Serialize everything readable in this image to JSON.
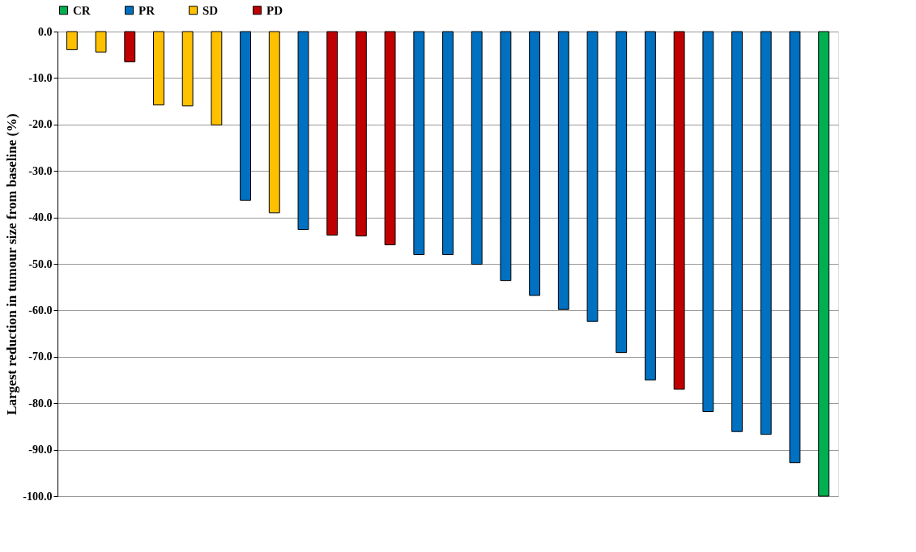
{
  "chart_data": {
    "type": "bar",
    "ylabel": "Largest reduction in tumour size from baseline (%)",
    "categories": [
      null,
      null,
      null,
      null,
      null,
      null,
      null,
      null,
      null,
      null,
      null,
      null,
      null,
      null,
      null,
      null,
      null,
      null,
      null,
      null,
      null,
      null,
      null,
      null,
      null,
      null,
      null
    ],
    "series": [
      {
        "name": "CR",
        "color": "#00b050",
        "values": [
          null,
          null,
          null,
          null,
          null,
          null,
          null,
          null,
          null,
          null,
          null,
          null,
          null,
          null,
          null,
          null,
          null,
          null,
          null,
          null,
          null,
          null,
          null,
          null,
          null,
          null,
          -100.0
        ]
      },
      {
        "name": "PR",
        "color": "#0070c0",
        "values": [
          null,
          null,
          null,
          null,
          null,
          null,
          -36.3,
          null,
          -42.6,
          null,
          null,
          null,
          -48.0,
          -48.0,
          -50.1,
          -53.6,
          -56.8,
          -59.8,
          -62.4,
          -69.1,
          -75.0,
          null,
          -81.8,
          -86.1,
          -86.7,
          -92.8,
          null
        ]
      },
      {
        "name": "SD",
        "color": "#ffc000",
        "values": [
          -3.9,
          -4.4,
          null,
          -15.8,
          -16.0,
          -20.1,
          null,
          -39.0,
          null,
          null,
          null,
          null,
          null,
          null,
          null,
          null,
          null,
          null,
          null,
          null,
          null,
          null,
          null,
          null,
          null,
          null,
          null
        ]
      },
      {
        "name": "PD",
        "color": "#c00000",
        "values": [
          null,
          null,
          -6.5,
          null,
          null,
          null,
          null,
          null,
          null,
          -43.8,
          -44.0,
          -45.9,
          null,
          null,
          null,
          null,
          null,
          null,
          null,
          null,
          null,
          -77.0,
          null,
          null,
          null,
          null,
          null
        ]
      }
    ],
    "ylim": [
      -100,
      0
    ],
    "yticks": [
      {
        "value": 0,
        "label": "0.0"
      },
      {
        "value": -10,
        "label": "-10.0"
      },
      {
        "value": -20,
        "label": "-20.0"
      },
      {
        "value": -30,
        "label": "-30.0"
      },
      {
        "value": -40,
        "label": "-40.0"
      },
      {
        "value": -50,
        "label": "-50.0"
      },
      {
        "value": -60,
        "label": "-60.0"
      },
      {
        "value": -70,
        "label": "-70.0"
      },
      {
        "value": -80,
        "label": "-80.0"
      },
      {
        "value": -90,
        "label": "-90.0"
      },
      {
        "value": -100,
        "label": "-100.0"
      }
    ],
    "grid": "y",
    "legend": "top",
    "tick_labels": "y"
  }
}
